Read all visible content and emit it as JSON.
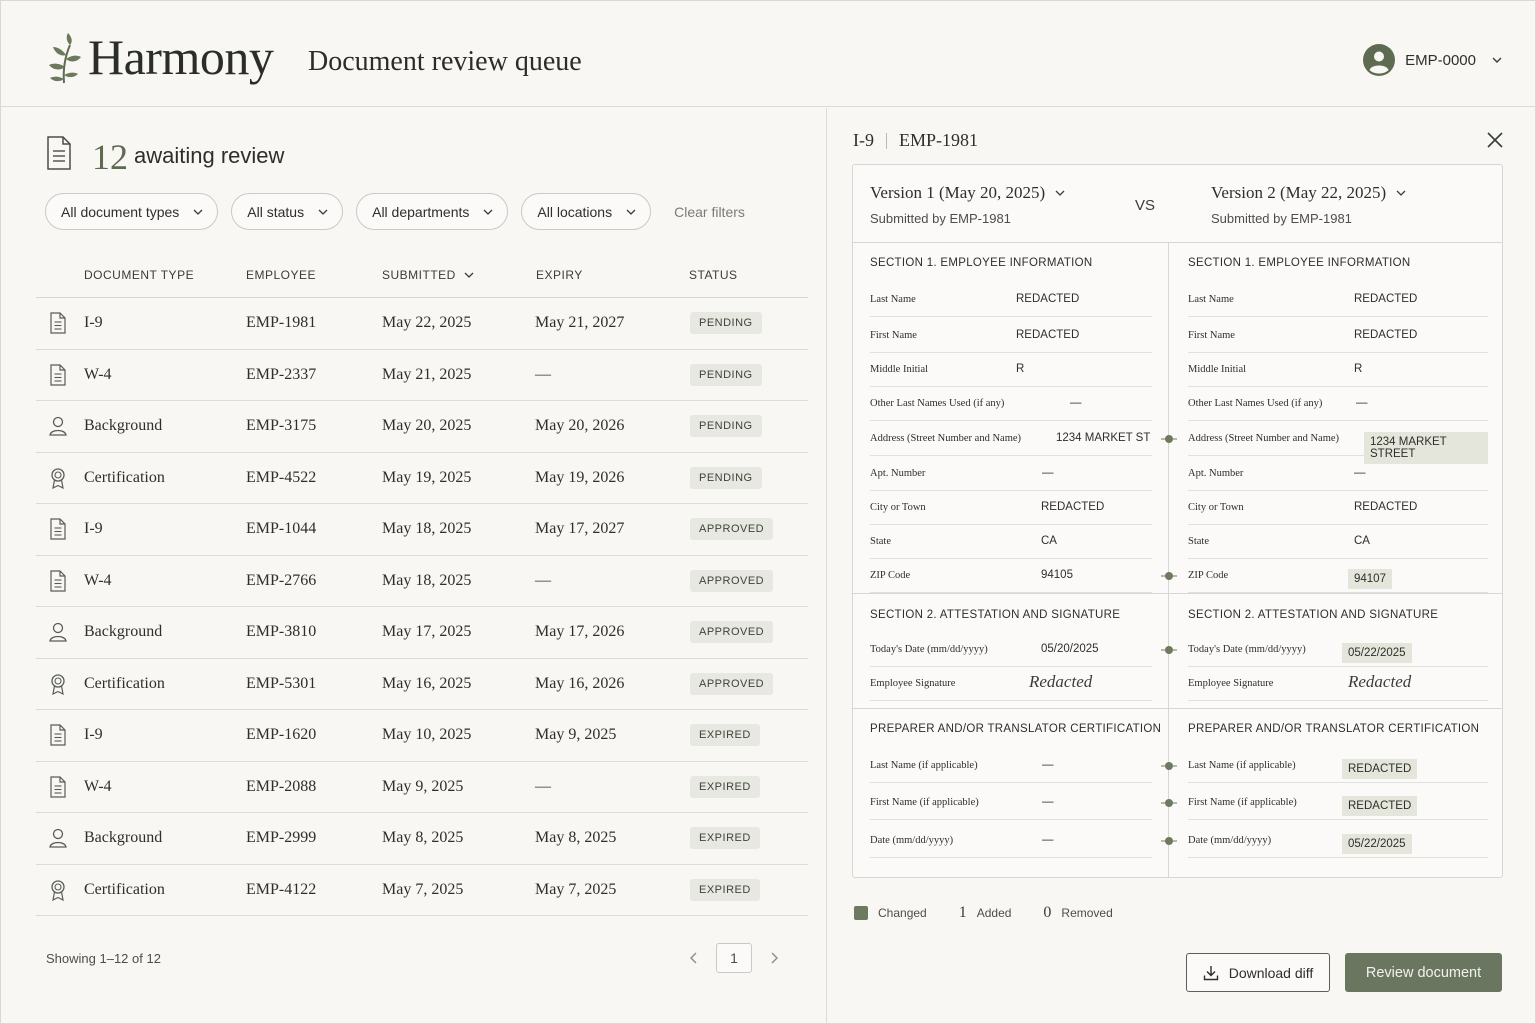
{
  "header": {
    "logo_text": "Harmony",
    "page_title": "Document review queue",
    "user_id": "EMP-0000"
  },
  "summary": {
    "count": "12",
    "label": "awaiting review"
  },
  "filters": [
    {
      "label": "All document types"
    },
    {
      "label": "All status"
    },
    {
      "label": "All departments"
    },
    {
      "label": "All locations"
    }
  ],
  "clear_filters": "Clear filters",
  "table": {
    "columns": [
      "DOCUMENT TYPE",
      "EMPLOYEE",
      "SUBMITTED",
      "EXPIRY",
      "STATUS"
    ],
    "rows": [
      {
        "icon": "document-icon",
        "type": "I-9",
        "employee": "EMP-1981",
        "submitted": "May 22, 2025",
        "expiry": "May 21, 2027",
        "status": "PENDING"
      },
      {
        "icon": "document-icon",
        "type": "W-4",
        "employee": "EMP-2337",
        "submitted": "May 21, 2025",
        "expiry": "—",
        "status": "PENDING"
      },
      {
        "icon": "person-icon",
        "type": "Background",
        "employee": "EMP-3175",
        "submitted": "May 20, 2025",
        "expiry": "May 20, 2026",
        "status": "PENDING"
      },
      {
        "icon": "award-icon",
        "type": "Certification",
        "employee": "EMP-4522",
        "submitted": "May 19, 2025",
        "expiry": "May 19, 2026",
        "status": "PENDING"
      },
      {
        "icon": "document-icon",
        "type": "I-9",
        "employee": "EMP-1044",
        "submitted": "May 18, 2025",
        "expiry": "May 17, 2027",
        "status": "APPROVED"
      },
      {
        "icon": "document-icon",
        "type": "W-4",
        "employee": "EMP-2766",
        "submitted": "May 18, 2025",
        "expiry": "—",
        "status": "APPROVED"
      },
      {
        "icon": "person-icon",
        "type": "Background",
        "employee": "EMP-3810",
        "submitted": "May 17, 2025",
        "expiry": "May 17, 2026",
        "status": "APPROVED"
      },
      {
        "icon": "award-icon",
        "type": "Certification",
        "employee": "EMP-5301",
        "submitted": "May 16, 2025",
        "expiry": "May 16, 2026",
        "status": "APPROVED"
      },
      {
        "icon": "document-icon",
        "type": "I-9",
        "employee": "EMP-1620",
        "submitted": "May 10, 2025",
        "expiry": "May 9, 2025",
        "status": "EXPIRED"
      },
      {
        "icon": "document-icon",
        "type": "W-4",
        "employee": "EMP-2088",
        "submitted": "May 9, 2025",
        "expiry": "—",
        "status": "EXPIRED"
      },
      {
        "icon": "person-icon",
        "type": "Background",
        "employee": "EMP-2999",
        "submitted": "May 8, 2025",
        "expiry": "May 8, 2025",
        "status": "EXPIRED"
      },
      {
        "icon": "award-icon",
        "type": "Certification",
        "employee": "EMP-4122",
        "submitted": "May 7, 2025",
        "expiry": "May 7, 2025",
        "status": "EXPIRED"
      }
    ]
  },
  "pagination": {
    "showing": "Showing 1–12 of 12",
    "page": "1"
  },
  "detail": {
    "doc_type": "I-9",
    "employee": "EMP-1981",
    "vs": "VS",
    "left_version": {
      "title": "Version 1 (May 20, 2025)",
      "submitted_by": "Submitted by EMP-1981"
    },
    "right_version": {
      "title": "Version 2 (May 22, 2025)",
      "submitted_by": "Submitted by EMP-1981"
    },
    "sections": [
      {
        "title": "SECTION 1. EMPLOYEE INFORMATION",
        "fields": [
          {
            "label": "Last Name",
            "left": "REDACTED",
            "right": "REDACTED",
            "changed": false
          },
          {
            "label": "First Name",
            "left": "REDACTED",
            "right": "REDACTED",
            "changed": false
          },
          {
            "label": "Middle Initial",
            "left": "R",
            "right": "R",
            "changed": false
          },
          {
            "label": "Other Last Names Used (if any)",
            "left": "—",
            "right": "—",
            "changed": false
          },
          {
            "label": "Address (Street Number and Name)",
            "left": "1234 MARKET ST",
            "right": "1234 MARKET STREET",
            "changed": true
          },
          {
            "label": "Apt. Number",
            "left": "—",
            "right": "—",
            "changed": false
          },
          {
            "label": "City or Town",
            "left": "REDACTED",
            "right": "REDACTED",
            "changed": false
          },
          {
            "label": "State",
            "left": "CA",
            "right": "CA",
            "changed": false
          },
          {
            "label": "ZIP Code",
            "left": "94105",
            "right": "94107",
            "changed": true
          }
        ]
      },
      {
        "title": "SECTION 2. ATTESTATION AND SIGNATURE",
        "fields": [
          {
            "label": "Today's Date (mm/dd/yyyy)",
            "left": "05/20/2025",
            "right": "05/22/2025",
            "changed": true
          },
          {
            "label": "Employee Signature",
            "left": "Redacted",
            "right": "Redacted",
            "changed": false,
            "signature": true
          }
        ]
      },
      {
        "title": "PREPARER AND/OR TRANSLATOR CERTIFICATION",
        "fields": [
          {
            "label": "Last Name (if applicable)",
            "left": "—",
            "right": "REDACTED",
            "changed": true
          },
          {
            "label": "First Name (if applicable)",
            "left": "—",
            "right": "REDACTED",
            "changed": true
          },
          {
            "label": "Date (mm/dd/yyyy)",
            "left": "—",
            "right": "05/22/2025",
            "changed": true
          }
        ]
      }
    ],
    "legend": {
      "changed_label": "Changed",
      "added_count": "1",
      "added_label": "Added",
      "removed_count": "0",
      "removed_label": "Removed"
    },
    "download_label": "Download diff",
    "review_label": "Review document"
  },
  "colors": {
    "accent": "#6b7661",
    "badge_bg": "#e7e8e1",
    "highlight": "#e4e6dc"
  }
}
